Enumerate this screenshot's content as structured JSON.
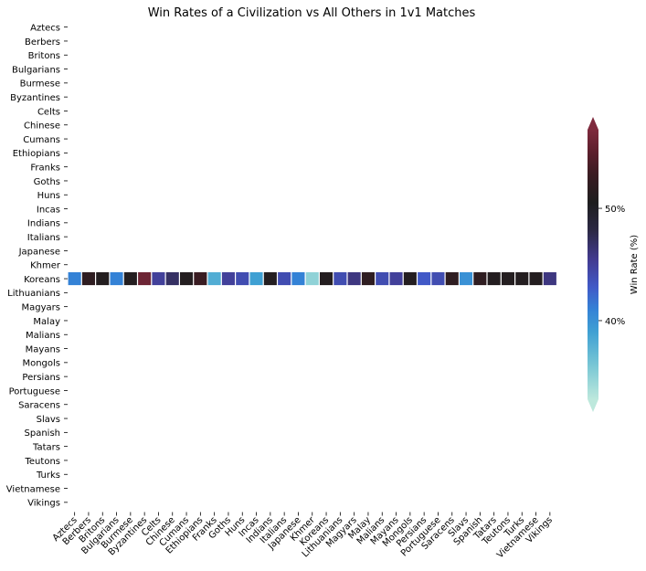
{
  "chart_data": {
    "type": "heatmap",
    "title": "Win Rates of a Civilization vs All Others in 1v1 Matches",
    "row_labels": [
      "Aztecs",
      "Berbers",
      "Britons",
      "Bulgarians",
      "Burmese",
      "Byzantines",
      "Celts",
      "Chinese",
      "Cumans",
      "Ethiopians",
      "Franks",
      "Goths",
      "Huns",
      "Incas",
      "Indians",
      "Italians",
      "Japanese",
      "Khmer",
      "Koreans",
      "Lithuanians",
      "Magyars",
      "Malay",
      "Malians",
      "Mayans",
      "Mongols",
      "Persians",
      "Portuguese",
      "Saracens",
      "Slavs",
      "Spanish",
      "Tatars",
      "Teutons",
      "Turks",
      "Vietnamese",
      "Vikings"
    ],
    "col_labels": [
      "Aztecs",
      "Berbers",
      "Britons",
      "Bulgarians",
      "Burmese",
      "Byzantines",
      "Celts",
      "Chinese",
      "Cumans",
      "Ethiopians",
      "Franks",
      "Goths",
      "Huns",
      "Incas",
      "Indians",
      "Italians",
      "Japanese",
      "Khmer",
      "Koreans",
      "Lithuanians",
      "Magyars",
      "Malay",
      "Malians",
      "Mayans",
      "Mongols",
      "Persians",
      "Portuguese",
      "Saracens",
      "Slavs",
      "Spanish",
      "Tatars",
      "Teutons",
      "Turks",
      "Vietnamese",
      "Vikings"
    ],
    "highlighted_row": "Koreans",
    "values": [
      41,
      52,
      51,
      41,
      51,
      56,
      45,
      47,
      51,
      53,
      38,
      45,
      44,
      39,
      51,
      44,
      41,
      35,
      51,
      44,
      46,
      52,
      44,
      45,
      51,
      43,
      44,
      52,
      40,
      52,
      51,
      51,
      51,
      51,
      46
    ],
    "colorbar": {
      "label": "Win Rate (%)",
      "ticks": [
        40,
        50
      ],
      "tick_labels": [
        "40%",
        "50%"
      ],
      "vmin": 33,
      "vmax": 57,
      "extend": "both"
    },
    "colormap": {
      "name": "icefire-like",
      "stops": [
        {
          "v": 33,
          "color": "#bde8dc"
        },
        {
          "v": 36,
          "color": "#79c7d5"
        },
        {
          "v": 39,
          "color": "#3fa0d3"
        },
        {
          "v": 41,
          "color": "#3482d6"
        },
        {
          "v": 43,
          "color": "#4159c7"
        },
        {
          "v": 45.5,
          "color": "#423a8f"
        },
        {
          "v": 48,
          "color": "#2c2945"
        },
        {
          "v": 50.5,
          "color": "#1e1e1f"
        },
        {
          "v": 53,
          "color": "#3a1c22"
        },
        {
          "v": 55,
          "color": "#5c1f2c"
        },
        {
          "v": 57,
          "color": "#7e2a3d"
        }
      ]
    }
  }
}
